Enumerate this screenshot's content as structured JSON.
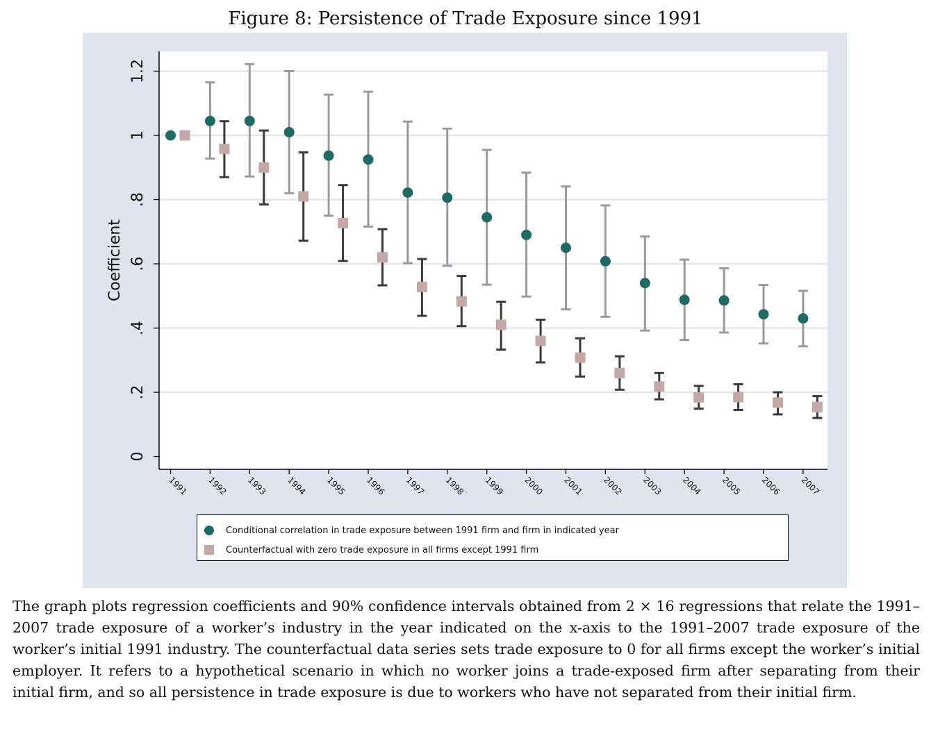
{
  "figure": {
    "title": "Figure 8: Persistence of Trade Exposure since 1991",
    "caption": "The graph plots regression coefficients and 90% confidence intervals obtained from 2 × 16 regressions that relate the 1991–2007 trade exposure of a worker’s industry in the year indicated on the x-axis to the 1991–2007 trade exposure of the worker’s initial 1991 industry. The counterfactual data series sets trade exposure to 0 for all firms except the worker’s initial employer. It refers to a hypothetical scenario in which no worker joins a trade-exposed firm after separating from their initial firm, and so all persistence in trade exposure is due to workers who have not separated from their initial firm."
  },
  "colors": {
    "series1": "#1f6b63",
    "series2": "#c4a8a6",
    "ci1": "#9a9a9a",
    "ci2": "#3a3a3a",
    "background": "#dfe4ee",
    "grid": "#e3e6ee"
  },
  "chart_data": {
    "type": "scatter",
    "title": "Figure 8: Persistence of Trade Exposure since 1991",
    "xlabel": "",
    "ylabel": "Coefficient",
    "categories": [
      "1991",
      "1992",
      "1993",
      "1994",
      "1995",
      "1996",
      "1997",
      "1998",
      "1999",
      "2000",
      "2001",
      "2002",
      "2003",
      "2004",
      "2005",
      "2006",
      "2007"
    ],
    "yticks": [
      0,
      0.2,
      0.4,
      0.6,
      0.8,
      1,
      1.2
    ],
    "ytick_labels": [
      "0",
      ".2",
      ".4",
      ".6",
      ".8",
      "1",
      "1.2"
    ],
    "ylim": [
      -0.04,
      1.26
    ],
    "grid": true,
    "legend_position": "bottom",
    "series": [
      {
        "name": "Conditional correlation in trade exposure between 1991 firm and firm in indicated year",
        "marker": "circle",
        "values": [
          1.0,
          1.045,
          1.045,
          1.01,
          0.937,
          0.925,
          0.822,
          0.806,
          0.745,
          0.69,
          0.65,
          0.608,
          0.54,
          0.488,
          0.486,
          0.443,
          0.43
        ],
        "ci_low": [
          null,
          0.928,
          0.872,
          0.82,
          0.75,
          0.716,
          0.602,
          0.594,
          0.535,
          0.498,
          0.458,
          0.435,
          0.392,
          0.363,
          0.386,
          0.352,
          0.343
        ],
        "ci_high": [
          null,
          1.165,
          1.222,
          1.2,
          1.127,
          1.136,
          1.043,
          1.021,
          0.955,
          0.884,
          0.841,
          0.782,
          0.685,
          0.613,
          0.586,
          0.534,
          0.516
        ]
      },
      {
        "name": "Counterfactual with zero trade exposure in all firms except 1991 firm",
        "marker": "square",
        "values": [
          1.0,
          0.958,
          0.9,
          0.81,
          0.727,
          0.62,
          0.528,
          0.483,
          0.41,
          0.36,
          0.308,
          0.26,
          0.218,
          0.184,
          0.185,
          0.168,
          0.154
        ],
        "ci_low": [
          null,
          0.87,
          0.785,
          0.672,
          0.609,
          0.533,
          0.438,
          0.406,
          0.333,
          0.293,
          0.249,
          0.208,
          0.178,
          0.149,
          0.145,
          0.131,
          0.12
        ],
        "ci_high": [
          null,
          1.044,
          1.015,
          0.947,
          0.845,
          0.708,
          0.615,
          0.562,
          0.482,
          0.426,
          0.368,
          0.312,
          0.26,
          0.22,
          0.225,
          0.2,
          0.188
        ]
      }
    ]
  }
}
